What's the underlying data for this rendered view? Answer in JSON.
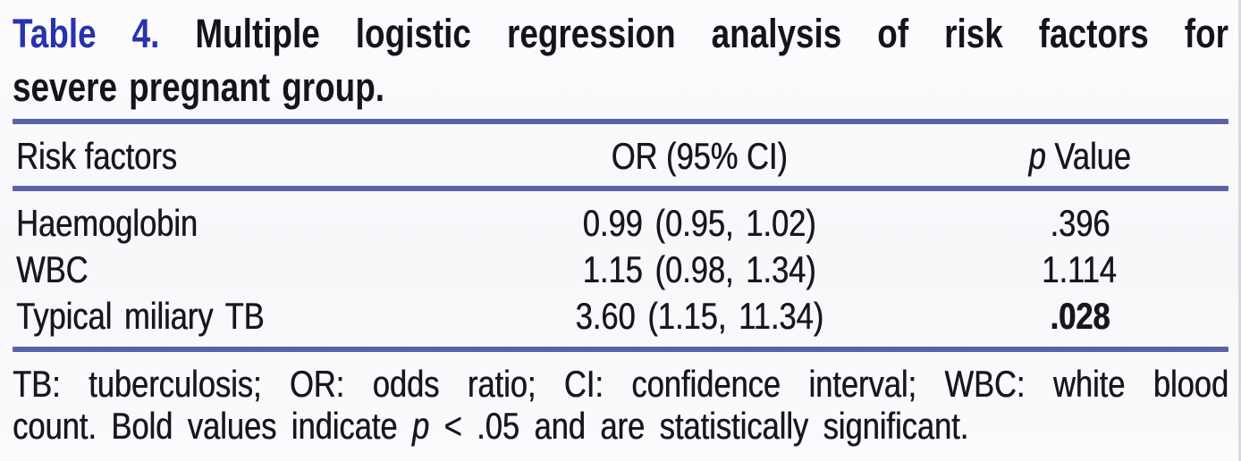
{
  "figure": {
    "label": "Table 4.",
    "title_rest": " Multiple logistic regression analysis of risk factors for",
    "title_line2": "severe pregnant group.",
    "header": {
      "risk_factors": "Risk factors",
      "or_ci": "OR (95% CI)",
      "p_italic": "p",
      "p_rest": " Value"
    },
    "rows": [
      {
        "risk_factor": "Haemoglobin",
        "or_ci": "0.99 (0.95, 1.02)",
        "p_value": ".396",
        "significant": false
      },
      {
        "risk_factor": "WBC",
        "or_ci": "1.15 (0.98, 1.34)",
        "p_value": "1.114",
        "significant": false
      },
      {
        "risk_factor": "Typical miliary TB",
        "or_ci": "3.60 (1.15, 11.34)",
        "p_value": ".028",
        "significant": true
      }
    ],
    "footnote": {
      "line1": "TB: tuberculosis; OR: odds ratio; CI: confidence interval; WBC: white blood",
      "line2_pre": "count. Bold values indicate ",
      "line2_italic": "p",
      "line2_post": " < .05 and are statistically significant."
    },
    "colors": {
      "label_blue": "#2733ac",
      "rule_blue": "#5a63a7",
      "text": "#17171d"
    }
  },
  "chart_data": {
    "type": "table",
    "title": "Table 4. Multiple logistic regression analysis of risk factors for severe pregnant group.",
    "columns": [
      "Risk factors",
      "OR (95% CI)",
      "p Value"
    ],
    "rows": [
      [
        "Haemoglobin",
        "0.99 (0.95, 1.02)",
        ".396"
      ],
      [
        "WBC",
        "1.15 (0.98, 1.34)",
        "1.114"
      ],
      [
        "Typical miliary TB",
        "3.60 (1.15, 11.34)",
        ".028"
      ]
    ],
    "or_values": [
      0.99,
      1.15,
      3.6
    ],
    "ci_low": [
      0.95,
      0.98,
      1.15
    ],
    "ci_high": [
      1.02,
      1.34,
      11.34
    ],
    "p_values": [
      0.396,
      1.114,
      0.028
    ],
    "bold_p_values": [
      ".028"
    ]
  }
}
